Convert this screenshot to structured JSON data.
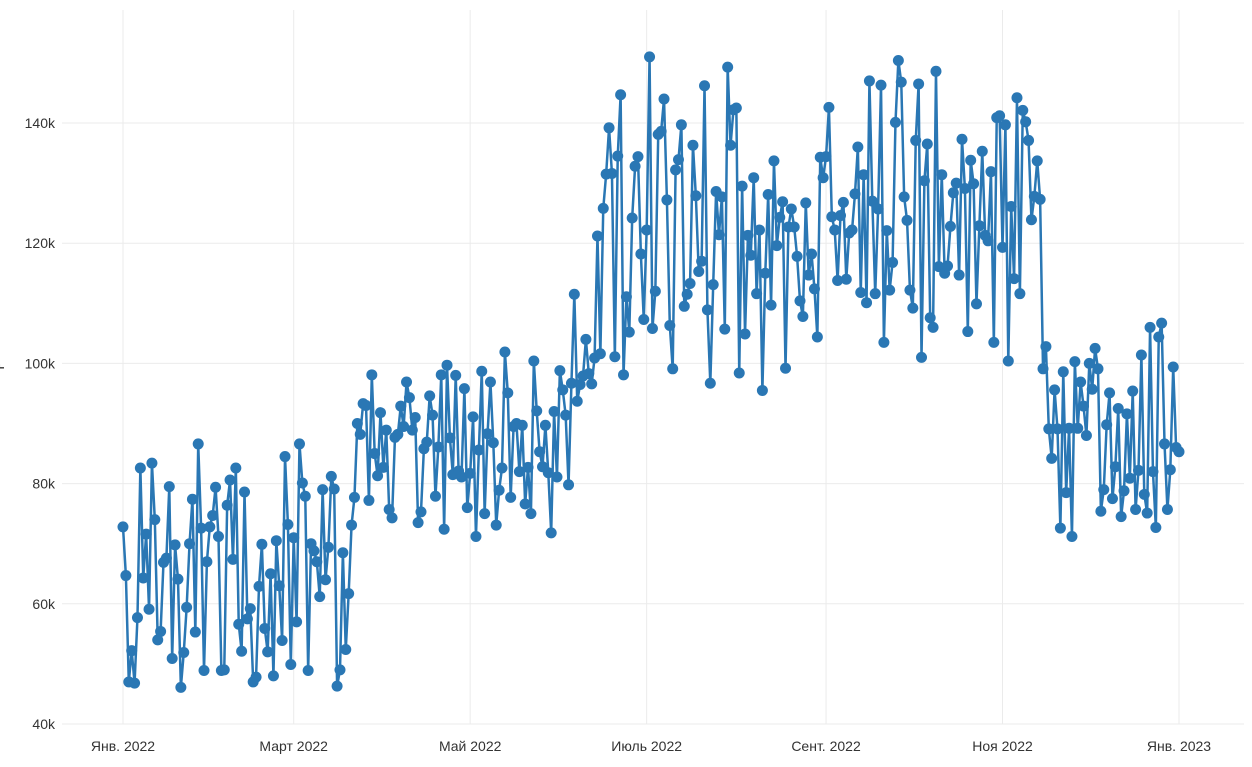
{
  "chart_data": {
    "type": "line",
    "title": "",
    "xlabel": "",
    "ylabel": "Р ",
    "ylim": [
      40000,
      155000
    ],
    "xlim": [
      "2022-01-01",
      "2023-01-01"
    ],
    "grid": true,
    "legend": "none",
    "colors": {
      "series": "#2a77b4",
      "grid": "#ebebeb",
      "text": "#333333",
      "background": "#ffffff"
    },
    "y_ticks": [
      {
        "value": 40000,
        "label": "40k"
      },
      {
        "value": 60000,
        "label": "60k"
      },
      {
        "value": 80000,
        "label": "80k"
      },
      {
        "value": 100000,
        "label": "100k"
      },
      {
        "value": 120000,
        "label": "120k"
      },
      {
        "value": 140000,
        "label": "140k"
      }
    ],
    "x_ticks": [
      {
        "value": "2022-01-01",
        "label": "Янв. 2022"
      },
      {
        "value": "2022-03-01",
        "label": "Март 2022"
      },
      {
        "value": "2022-05-01",
        "label": "Май 2022"
      },
      {
        "value": "2022-07-01",
        "label": "Июль 2022"
      },
      {
        "value": "2022-09-01",
        "label": "Сент. 2022"
      },
      {
        "value": "2022-11-01",
        "label": "Ноя 2022"
      },
      {
        "value": "2023-01-01",
        "label": "Янв. 2023"
      }
    ],
    "series": [
      {
        "x": [
          "2022-01-01",
          "2022-01-02",
          "2022-01-03",
          "2022-01-04",
          "2022-01-05",
          "2022-01-06",
          "2022-01-07",
          "2022-01-08",
          "2022-01-09",
          "2022-01-10",
          "2022-01-11",
          "2022-01-12",
          "2022-01-13",
          "2022-01-14",
          "2022-01-15",
          "2022-01-16",
          "2022-01-17",
          "2022-01-18",
          "2022-01-19",
          "2022-01-20",
          "2022-01-21",
          "2022-01-22",
          "2022-01-23",
          "2022-01-24",
          "2022-01-25",
          "2022-01-26",
          "2022-01-27",
          "2022-01-28",
          "2022-01-29",
          "2022-01-30",
          "2022-01-31",
          "2022-02-01",
          "2022-02-02",
          "2022-02-03",
          "2022-02-04",
          "2022-02-05",
          "2022-02-06",
          "2022-02-07",
          "2022-02-08",
          "2022-02-09",
          "2022-02-10",
          "2022-02-11",
          "2022-02-12",
          "2022-02-13",
          "2022-02-14",
          "2022-02-15",
          "2022-02-16",
          "2022-02-17",
          "2022-02-18",
          "2022-02-19",
          "2022-02-20",
          "2022-02-21",
          "2022-02-22",
          "2022-02-23",
          "2022-02-24",
          "2022-02-25",
          "2022-02-26",
          "2022-02-27",
          "2022-02-28",
          "2022-03-01",
          "2022-03-02",
          "2022-03-03",
          "2022-03-04",
          "2022-03-05",
          "2022-03-06",
          "2022-03-07",
          "2022-03-08",
          "2022-03-09",
          "2022-03-10",
          "2022-03-11",
          "2022-03-12",
          "2022-03-13",
          "2022-03-14",
          "2022-03-15",
          "2022-03-16",
          "2022-03-17",
          "2022-03-18",
          "2022-03-19",
          "2022-03-20",
          "2022-03-21",
          "2022-03-22",
          "2022-03-23",
          "2022-03-24",
          "2022-03-25",
          "2022-03-26",
          "2022-03-27",
          "2022-03-28",
          "2022-03-29",
          "2022-03-30",
          "2022-03-31",
          "2022-04-01",
          "2022-04-02",
          "2022-04-03",
          "2022-04-04",
          "2022-04-05",
          "2022-04-06",
          "2022-04-07",
          "2022-04-08",
          "2022-04-09",
          "2022-04-10",
          "2022-04-11",
          "2022-04-12",
          "2022-04-13",
          "2022-04-14",
          "2022-04-15",
          "2022-04-16",
          "2022-04-17",
          "2022-04-18",
          "2022-04-19",
          "2022-04-20",
          "2022-04-21",
          "2022-04-22",
          "2022-04-23",
          "2022-04-24",
          "2022-04-25",
          "2022-04-26",
          "2022-04-27",
          "2022-04-28",
          "2022-04-29",
          "2022-04-30",
          "2022-05-01",
          "2022-05-02",
          "2022-05-03",
          "2022-05-04",
          "2022-05-05",
          "2022-05-06",
          "2022-05-07",
          "2022-05-08",
          "2022-05-09",
          "2022-05-10",
          "2022-05-11",
          "2022-05-12",
          "2022-05-13",
          "2022-05-14",
          "2022-05-15",
          "2022-05-16",
          "2022-05-17",
          "2022-05-18",
          "2022-05-19",
          "2022-05-20",
          "2022-05-21",
          "2022-05-22",
          "2022-05-23",
          "2022-05-24",
          "2022-05-25",
          "2022-05-26",
          "2022-05-27",
          "2022-05-28",
          "2022-05-29",
          "2022-05-30",
          "2022-05-31",
          "2022-06-01",
          "2022-06-02",
          "2022-06-03",
          "2022-06-04",
          "2022-06-05",
          "2022-06-06",
          "2022-06-07",
          "2022-06-08",
          "2022-06-09",
          "2022-06-10",
          "2022-06-11",
          "2022-06-12",
          "2022-06-13",
          "2022-06-14",
          "2022-06-15",
          "2022-06-16",
          "2022-06-17",
          "2022-06-18",
          "2022-06-19",
          "2022-06-20",
          "2022-06-21",
          "2022-06-22",
          "2022-06-23",
          "2022-06-24",
          "2022-06-25",
          "2022-06-26",
          "2022-06-27",
          "2022-06-28",
          "2022-06-29",
          "2022-06-30",
          "2022-07-01",
          "2022-07-02",
          "2022-07-03",
          "2022-07-04",
          "2022-07-05",
          "2022-07-06",
          "2022-07-07",
          "2022-07-08",
          "2022-07-09",
          "2022-07-10",
          "2022-07-11",
          "2022-07-12",
          "2022-07-13",
          "2022-07-14",
          "2022-07-15",
          "2022-07-16",
          "2022-07-17",
          "2022-07-18",
          "2022-07-19",
          "2022-07-20",
          "2022-07-21",
          "2022-07-22",
          "2022-07-23",
          "2022-07-24",
          "2022-07-25",
          "2022-07-26",
          "2022-07-27",
          "2022-07-28",
          "2022-07-29",
          "2022-07-30",
          "2022-07-31",
          "2022-08-01",
          "2022-08-02",
          "2022-08-03",
          "2022-08-04",
          "2022-08-05",
          "2022-08-06",
          "2022-08-07",
          "2022-08-08",
          "2022-08-09",
          "2022-08-10",
          "2022-08-11",
          "2022-08-12",
          "2022-08-13",
          "2022-08-14",
          "2022-08-15",
          "2022-08-16",
          "2022-08-17",
          "2022-08-18",
          "2022-08-19",
          "2022-08-20",
          "2022-08-21",
          "2022-08-22",
          "2022-08-23",
          "2022-08-24",
          "2022-08-25",
          "2022-08-26",
          "2022-08-27",
          "2022-08-28",
          "2022-08-29",
          "2022-08-30",
          "2022-08-31",
          "2022-09-01",
          "2022-09-02",
          "2022-09-03",
          "2022-09-04",
          "2022-09-05",
          "2022-09-06",
          "2022-09-07",
          "2022-09-08",
          "2022-09-09",
          "2022-09-10",
          "2022-09-11",
          "2022-09-12",
          "2022-09-13",
          "2022-09-14",
          "2022-09-15",
          "2022-09-16",
          "2022-09-17",
          "2022-09-18",
          "2022-09-19",
          "2022-09-20",
          "2022-09-21",
          "2022-09-22",
          "2022-09-23",
          "2022-09-24",
          "2022-09-25",
          "2022-09-26",
          "2022-09-27",
          "2022-09-28",
          "2022-09-29",
          "2022-09-30",
          "2022-10-01",
          "2022-10-02",
          "2022-10-03",
          "2022-10-04",
          "2022-10-05",
          "2022-10-06",
          "2022-10-07",
          "2022-10-08",
          "2022-10-09",
          "2022-10-10",
          "2022-10-11",
          "2022-10-12",
          "2022-10-13",
          "2022-10-14",
          "2022-10-15",
          "2022-10-16",
          "2022-10-17",
          "2022-10-18",
          "2022-10-19",
          "2022-10-20",
          "2022-10-21",
          "2022-10-22",
          "2022-10-23",
          "2022-10-24",
          "2022-10-25",
          "2022-10-26",
          "2022-10-27",
          "2022-10-28",
          "2022-10-29",
          "2022-10-30",
          "2022-10-31",
          "2022-11-01",
          "2022-11-02",
          "2022-11-03",
          "2022-11-04",
          "2022-11-05",
          "2022-11-06",
          "2022-11-07",
          "2022-11-08",
          "2022-11-09",
          "2022-11-10",
          "2022-11-11",
          "2022-11-12",
          "2022-11-13",
          "2022-11-14",
          "2022-11-15",
          "2022-11-16",
          "2022-11-17",
          "2022-11-18",
          "2022-11-19",
          "2022-11-20",
          "2022-11-21",
          "2022-11-22",
          "2022-11-23",
          "2022-11-24",
          "2022-11-25",
          "2022-11-26",
          "2022-11-27",
          "2022-11-28",
          "2022-11-29",
          "2022-11-30",
          "2022-12-01",
          "2022-12-02",
          "2022-12-03",
          "2022-12-04",
          "2022-12-05",
          "2022-12-06",
          "2022-12-07",
          "2022-12-08",
          "2022-12-09",
          "2022-12-10",
          "2022-12-11",
          "2022-12-12",
          "2022-12-13",
          "2022-12-14",
          "2022-12-15",
          "2022-12-16",
          "2022-12-17",
          "2022-12-18",
          "2022-12-19",
          "2022-12-20",
          "2022-12-21",
          "2022-12-22",
          "2022-12-23",
          "2022-12-24",
          "2022-12-25",
          "2022-12-26",
          "2022-12-27",
          "2022-12-28",
          "2022-12-29",
          "2022-12-30",
          "2022-12-31",
          "2023-01-01"
        ],
        "values": [
          72800,
          64700,
          47000,
          52200,
          46800,
          57700,
          82600,
          64300,
          71600,
          59100,
          83400,
          74000,
          54000,
          55400,
          66900,
          67600,
          79500,
          50900,
          69800,
          64100,
          46100,
          51900,
          59400,
          70000,
          77400,
          55300,
          86600,
          72600,
          48900,
          67000,
          72800,
          74700,
          79400,
          71200,
          48900,
          49000,
          76400,
          80600,
          67400,
          82600,
          56600,
          52100,
          78600,
          57500,
          59200,
          47000,
          47800,
          62900,
          69900,
          55900,
          52000,
          65000,
          48000,
          70500,
          63000,
          53900,
          84500,
          73200,
          49900,
          71000,
          57000,
          86600,
          80100,
          77900,
          48900,
          70000,
          68800,
          67000,
          61200,
          79000,
          64000,
          69400,
          81200,
          79100,
          46300,
          49000,
          68500,
          52400,
          61700,
          73100,
          77700,
          90000,
          88200,
          93300,
          93000,
          77200,
          98100,
          85000,
          81300,
          91800,
          82700,
          88900,
          75700,
          74300,
          87700,
          88200,
          92900,
          89500,
          96900,
          94300,
          88900,
          91000,
          73500,
          75300,
          85800,
          86900,
          94600,
          91400,
          77900,
          86100,
          98100,
          72400,
          99700,
          87600,
          81500,
          98000,
          82100,
          81100,
          95800,
          76000,
          81700,
          91100,
          71200,
          85600,
          98700,
          75000,
          88300,
          96900,
          86800,
          73100,
          78900,
          82600,
          101900,
          95100,
          77700,
          89500,
          90000,
          82000,
          89700,
          76600,
          82700,
          75000,
          100400,
          92100,
          85300,
          82800,
          89700,
          81800,
          71800,
          92000,
          81100,
          98800,
          95600,
          91400,
          79800,
          96700,
          111500,
          93700,
          96500,
          97900,
          104000,
          98300,
          96600,
          100900,
          121200,
          101600,
          125800,
          131500,
          139200,
          131600,
          101100,
          134500,
          144700,
          98100,
          111100,
          105200,
          124200,
          132800,
          134400,
          118200,
          107300,
          122200,
          151000,
          105800,
          112000,
          138100,
          138600,
          144000,
          127200,
          106300,
          99100,
          132200,
          133900,
          139700,
          109500,
          111500,
          113300,
          136300,
          127900,
          115300,
          117000,
          146200,
          108900,
          96700,
          113100,
          128600,
          121400,
          127700,
          105700,
          149300,
          136300,
          142200,
          142500,
          98400,
          129500,
          104900,
          121300,
          118000,
          130900,
          111600,
          122200,
          95500,
          115000,
          128100,
          109700,
          133700,
          119600,
          124300,
          126900,
          99200,
          122700,
          125700,
          122700,
          117800,
          110400,
          107800,
          126700,
          114700,
          118200,
          112400,
          104400,
          134300,
          130900,
          134400,
          142600,
          124400,
          122200,
          113800,
          124600,
          126800,
          114000,
          121700,
          122200,
          128200,
          136000,
          111800,
          131400,
          110100,
          147000,
          127000,
          111600,
          125700,
          146300,
          103500,
          122100,
          112200,
          116800,
          140100,
          150400,
          146800,
          127700,
          123800,
          112200,
          109200,
          137100,
          146500,
          101000,
          130400,
          136500,
          107600,
          106000,
          148600,
          116100,
          131400,
          115000,
          116200,
          122800,
          128400,
          130000,
          114700,
          137300,
          129100,
          105300,
          133800,
          129900,
          109900,
          122900,
          135300,
          121300,
          120400,
          131900,
          103500,
          140900,
          141200,
          119300,
          139700,
          100400,
          126100,
          114100,
          144200,
          111600,
          142100,
          140200,
          137100,
          123900,
          127800,
          133700,
          127300,
          99100,
          102800,
          89100,
          84200,
          95600,
          89100,
          72600,
          98600,
          78500,
          89200,
          71200,
          100300,
          89200,
          96900,
          92900,
          88000,
          100000,
          95700,
          102500,
          99100,
          75400,
          79000,
          89800,
          95100,
          77500,
          82800,
          92500,
          74500,
          78800,
          91600,
          80900,
          95400,
          75700,
          82200,
          101400,
          78200,
          75100,
          106000,
          82000,
          72700,
          104400,
          106700,
          86600,
          75700,
          82300,
          99400,
          86000,
          85300
        ]
      }
    ]
  }
}
